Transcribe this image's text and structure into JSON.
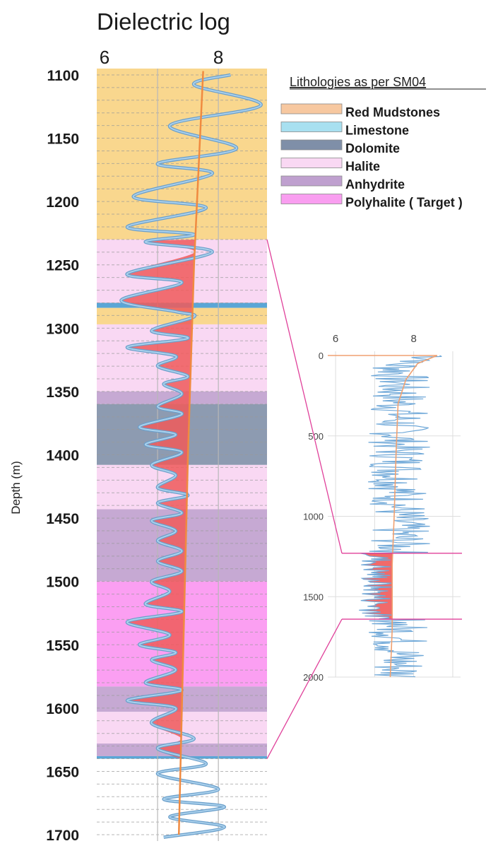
{
  "chart_data": [
    {
      "type": "line",
      "title": "Dielectric log",
      "ylabel": "Depth (m)",
      "xlim": [
        6,
        8.8
      ],
      "ylim": [
        1095,
        1705
      ],
      "x_ticks": [
        6,
        8
      ],
      "y_ticks": [
        1100,
        1150,
        1200,
        1250,
        1300,
        1350,
        1400,
        1450,
        1500,
        1550,
        1600,
        1650,
        1700
      ],
      "grid": true,
      "legend_title": "Lithologies as per SM04",
      "legend": [
        {
          "label": "Red Mudstones",
          "color": "#f7c8a0"
        },
        {
          "label": "Limestone",
          "color": "#a8e0f0"
        },
        {
          "label": "Dolomite",
          "color": "#7f8fa8"
        },
        {
          "label": "Halite",
          "color": "#f9d8f3"
        },
        {
          "label": "Anhydrite",
          "color": "#bfa0cf"
        },
        {
          "label": "Polyhalite ( Target )",
          "color": "#f99ef0"
        }
      ],
      "lithology_intervals": [
        {
          "top": 1095,
          "base": 1230,
          "lithology": "Red Mudstones",
          "color": "#f9d78e"
        },
        {
          "top": 1230,
          "base": 1280,
          "lithology": "Halite",
          "color": "#f9d8f3"
        },
        {
          "top": 1280,
          "base": 1284,
          "lithology": "Limestone",
          "color": "#5aa6d6"
        },
        {
          "top": 1284,
          "base": 1297,
          "lithology": "Red Mudstones",
          "color": "#f9d78e"
        },
        {
          "top": 1297,
          "base": 1350,
          "lithology": "Halite",
          "color": "#f9d8f3"
        },
        {
          "top": 1350,
          "base": 1360,
          "lithology": "Anhydrite",
          "color": "#c6a9d3"
        },
        {
          "top": 1360,
          "base": 1408,
          "lithology": "Dolomite",
          "color": "#8d9bb1"
        },
        {
          "top": 1408,
          "base": 1443,
          "lithology": "Halite",
          "color": "#f9d8f3"
        },
        {
          "top": 1443,
          "base": 1500,
          "lithology": "Anhydrite",
          "color": "#c6a9d3"
        },
        {
          "top": 1500,
          "base": 1583,
          "lithology": "Polyhalite ( Target )",
          "color": "#fb9ff2"
        },
        {
          "top": 1583,
          "base": 1603,
          "lithology": "Anhydrite",
          "color": "#c6a9d3"
        },
        {
          "top": 1603,
          "base": 1628,
          "lithology": "Halite",
          "color": "#f9d8f3"
        },
        {
          "top": 1628,
          "base": 1638,
          "lithology": "Anhydrite",
          "color": "#c6a9d3"
        },
        {
          "top": 1638,
          "base": 1640,
          "lithology": "Limestone",
          "color": "#5aa6d6"
        }
      ],
      "series": [
        {
          "values_kind": "log",
          "color": "#7fb0d8",
          "points": [
            [
              8.2,
              1100
            ],
            [
              7.6,
              1108
            ],
            [
              8.7,
              1124
            ],
            [
              7.2,
              1140
            ],
            [
              8.3,
              1158
            ],
            [
              7.0,
              1170
            ],
            [
              7.9,
              1178
            ],
            [
              6.6,
              1196
            ],
            [
              7.8,
              1205
            ],
            [
              6.5,
              1220
            ],
            [
              7.6,
              1226
            ],
            [
              6.8,
              1232
            ],
            [
              7.9,
              1240
            ],
            [
              6.5,
              1257
            ],
            [
              7.4,
              1264
            ],
            [
              6.4,
              1278
            ],
            [
              7.3,
              1287
            ],
            [
              7.6,
              1291
            ],
            [
              6.9,
              1302
            ],
            [
              7.5,
              1308
            ],
            [
              6.5,
              1315
            ],
            [
              7.3,
              1322
            ],
            [
              7.0,
              1330
            ],
            [
              7.5,
              1338
            ],
            [
              7.1,
              1344
            ],
            [
              7.4,
              1352
            ],
            [
              7.0,
              1362
            ],
            [
              7.4,
              1368
            ],
            [
              6.7,
              1378
            ],
            [
              7.3,
              1384
            ],
            [
              6.8,
              1392
            ],
            [
              7.4,
              1398
            ],
            [
              6.9,
              1408
            ],
            [
              7.3,
              1416
            ],
            [
              7.0,
              1426
            ],
            [
              7.5,
              1432
            ],
            [
              7.0,
              1438
            ],
            [
              7.4,
              1446
            ],
            [
              6.9,
              1452
            ],
            [
              7.3,
              1460
            ],
            [
              7.0,
              1468
            ],
            [
              7.4,
              1476
            ],
            [
              7.0,
              1484
            ],
            [
              7.4,
              1492
            ],
            [
              6.9,
              1500
            ],
            [
              7.2,
              1508
            ],
            [
              6.8,
              1518
            ],
            [
              7.4,
              1524
            ],
            [
              6.5,
              1532
            ],
            [
              7.2,
              1542
            ],
            [
              6.7,
              1550
            ],
            [
              7.3,
              1556
            ],
            [
              6.9,
              1562
            ],
            [
              7.3,
              1570
            ],
            [
              6.8,
              1580
            ],
            [
              7.4,
              1586
            ],
            [
              6.5,
              1594
            ],
            [
              7.3,
              1600
            ],
            [
              6.9,
              1612
            ],
            [
              7.6,
              1624
            ],
            [
              7.0,
              1632
            ],
            [
              7.8,
              1644
            ],
            [
              7.0,
              1652
            ],
            [
              8.0,
              1664
            ],
            [
              7.1,
              1672
            ],
            [
              8.1,
              1678
            ],
            [
              7.2,
              1686
            ],
            [
              8.1,
              1694
            ],
            [
              7.1,
              1702
            ]
          ]
        },
        {
          "values_kind": "trend",
          "color": "#f08a40",
          "points": [
            [
              7.75,
              1097
            ],
            [
              7.6,
              1250
            ],
            [
              7.5,
              1400
            ],
            [
              7.45,
              1500
            ],
            [
              7.4,
              1600
            ],
            [
              7.35,
              1700
            ]
          ]
        }
      ],
      "shading": {
        "color": "#f05a5a",
        "from_depth": 1230,
        "to_depth": 1640,
        "between": "log-trend"
      }
    },
    {
      "type": "line",
      "title": "",
      "xlim": [
        5.8,
        9.2
      ],
      "ylim": [
        0,
        2000
      ],
      "x_ticks": [
        6,
        8
      ],
      "y_ticks": [
        0,
        500,
        1000,
        1500,
        2000
      ],
      "grid": true,
      "zoom_interval": [
        1230,
        1640
      ],
      "series": [
        {
          "values_kind": "log",
          "color": "#7fb0d8"
        },
        {
          "values_kind": "trend",
          "color": "#f08a40",
          "points": [
            [
              5.8,
              0
            ],
            [
              8.6,
              0
            ],
            [
              8.1,
              50
            ],
            [
              7.8,
              150
            ],
            [
              7.6,
              300
            ],
            [
              7.55,
              600
            ],
            [
              7.5,
              1000
            ],
            [
              7.45,
              1300
            ],
            [
              7.45,
              1700
            ],
            [
              7.4,
              2000
            ]
          ]
        }
      ]
    }
  ]
}
